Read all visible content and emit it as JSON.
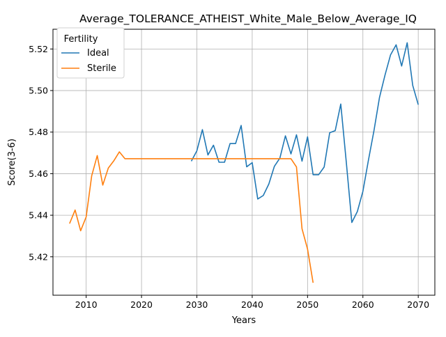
{
  "chart_data": {
    "type": "line",
    "title": "Average_TOLERANCE_ATHEIST_White_Male_Below_Average_IQ",
    "xlabel": "Years",
    "ylabel": "Score(3-6)",
    "xlim": [
      2004,
      2073
    ],
    "ylim": [
      5.4015,
      5.5295
    ],
    "x_ticks": [
      2010,
      2020,
      2030,
      2040,
      2050,
      2060,
      2070
    ],
    "y_ticks": [
      5.42,
      5.44,
      5.46,
      5.48,
      5.5,
      5.52
    ],
    "y_tick_labels": [
      "5.42",
      "5.44",
      "5.46",
      "5.48",
      "5.50",
      "5.52"
    ],
    "grid": true,
    "legend": {
      "title": "Fertility",
      "position": "top-left"
    },
    "series": [
      {
        "name": "Ideal",
        "color": "#1f77b4",
        "points": [
          [
            2029,
            5.466
          ],
          [
            2030,
            5.471
          ],
          [
            2031,
            5.4812
          ],
          [
            2032,
            5.469
          ],
          [
            2033,
            5.4737
          ],
          [
            2034,
            5.4655
          ],
          [
            2035,
            5.4655
          ],
          [
            2036,
            5.4745
          ],
          [
            2037,
            5.4745
          ],
          [
            2038,
            5.4832
          ],
          [
            2039,
            5.4633
          ],
          [
            2040,
            5.4653
          ],
          [
            2041,
            5.4478
          ],
          [
            2042,
            5.4495
          ],
          [
            2043,
            5.455
          ],
          [
            2044,
            5.4635
          ],
          [
            2045,
            5.4675
          ],
          [
            2046,
            5.4782
          ],
          [
            2047,
            5.4695
          ],
          [
            2048,
            5.4787
          ],
          [
            2049,
            5.466
          ],
          [
            2050,
            5.4777
          ],
          [
            2051,
            5.4595
          ],
          [
            2052,
            5.4595
          ],
          [
            2053,
            5.4632
          ],
          [
            2054,
            5.4797
          ],
          [
            2055,
            5.4807
          ],
          [
            2056,
            5.4935
          ],
          [
            2057,
            5.4655
          ],
          [
            2058,
            5.4365
          ],
          [
            2059,
            5.4418
          ],
          [
            2060,
            5.4515
          ],
          [
            2061,
            5.4665
          ],
          [
            2062,
            5.4807
          ],
          [
            2063,
            5.4967
          ],
          [
            2064,
            5.5075
          ],
          [
            2065,
            5.5172
          ],
          [
            2066,
            5.522
          ],
          [
            2067,
            5.5118
          ],
          [
            2068,
            5.523
          ],
          [
            2069,
            5.5025
          ],
          [
            2070,
            5.4932
          ]
        ]
      },
      {
        "name": "Sterile",
        "color": "#ff7f0e",
        "points": [
          [
            2007,
            5.436
          ],
          [
            2008,
            5.4425
          ],
          [
            2009,
            5.4325
          ],
          [
            2010,
            5.4392
          ],
          [
            2011,
            5.459
          ],
          [
            2012,
            5.4687
          ],
          [
            2013,
            5.4545
          ],
          [
            2014,
            5.4627
          ],
          [
            2015,
            5.4662
          ],
          [
            2016,
            5.4705
          ],
          [
            2017,
            5.4672
          ],
          [
            2018,
            5.4672
          ],
          [
            2020,
            5.4672
          ],
          [
            2025,
            5.4672
          ],
          [
            2030,
            5.4672
          ],
          [
            2035,
            5.4672
          ],
          [
            2040,
            5.4672
          ],
          [
            2045,
            5.4672
          ],
          [
            2047,
            5.4672
          ],
          [
            2048,
            5.4632
          ],
          [
            2049,
            5.4335
          ],
          [
            2050,
            5.4237
          ],
          [
            2051,
            5.4075
          ]
        ]
      }
    ]
  }
}
